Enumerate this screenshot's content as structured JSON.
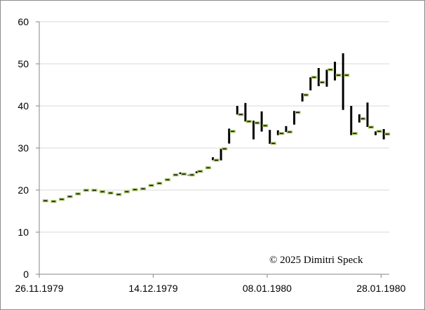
{
  "chart_data": {
    "type": "hlc",
    "title": "",
    "xlabel": "",
    "ylabel": "",
    "ylim": [
      0,
      60
    ],
    "yticks": [
      0,
      10,
      20,
      30,
      40,
      50,
      60
    ],
    "xtick_labels": [
      {
        "index": 0,
        "label": "26.11.1979"
      },
      {
        "index": 14,
        "label": "14.12.1979"
      },
      {
        "index": 28,
        "label": "08.01.1980"
      },
      {
        "index": 42,
        "label": "28.01.1980"
      }
    ],
    "grid": true,
    "annotation": "© 2025 Dimitri Speck",
    "colors": {
      "bar": "#000000",
      "close_marker": "#9bbb59",
      "grid": "#d9d9d9",
      "axis": "#868686"
    },
    "dates": [
      "26.11.1979",
      "27.11.1979",
      "28.11.1979",
      "29.11.1979",
      "30.11.1979",
      "03.12.1979",
      "04.12.1979",
      "05.12.1979",
      "06.12.1979",
      "07.12.1979",
      "10.12.1979",
      "11.12.1979",
      "12.12.1979",
      "13.12.1979",
      "14.12.1979",
      "17.12.1979",
      "18.12.1979",
      "19.12.1979",
      "20.12.1979",
      "21.12.1979",
      "26.12.1979",
      "27.12.1979",
      "28.12.1979",
      "31.12.1979",
      "02.01.1980",
      "03.01.1980",
      "04.01.1980",
      "07.01.1980",
      "08.01.1980",
      "09.01.1980",
      "10.01.1980",
      "11.01.1980",
      "14.01.1980",
      "15.01.1980",
      "16.01.1980",
      "17.01.1980",
      "18.01.1980",
      "21.01.1980",
      "22.01.1980",
      "23.01.1980",
      "24.01.1980",
      "25.01.1980",
      "28.01.1980"
    ],
    "high": [
      17.45,
      17.3,
      17.8,
      18.45,
      19.1,
      19.95,
      19.95,
      19.6,
      19.3,
      18.95,
      19.6,
      20.1,
      20.3,
      21.1,
      21.6,
      22.45,
      23.6,
      24.2,
      23.6,
      24.45,
      25.3,
      27.8,
      29.8,
      34.6,
      40.0,
      40.7,
      36.5,
      38.7,
      34.3,
      34.2,
      35.2,
      38.8,
      43.0,
      46.8,
      49.0,
      48.6,
      50.5,
      52.5,
      40.0,
      38.0,
      40.8,
      33.95,
      34.5
    ],
    "low": [
      17.45,
      17.3,
      17.8,
      18.45,
      19.1,
      19.95,
      19.95,
      19.6,
      19.3,
      18.95,
      19.6,
      20.1,
      20.3,
      21.1,
      21.6,
      22.45,
      23.6,
      23.8,
      23.45,
      24.0,
      25.3,
      27.1,
      27.05,
      31.05,
      37.95,
      36.3,
      32.05,
      33.9,
      31.0,
      33.05,
      33.8,
      35.55,
      41.05,
      43.7,
      44.7,
      44.55,
      46.05,
      39.05,
      33.05,
      36.05,
      35.0,
      33.05,
      32.05
    ],
    "close": [
      17.45,
      17.3,
      17.8,
      18.45,
      19.1,
      19.95,
      19.95,
      19.6,
      19.3,
      18.95,
      19.6,
      20.1,
      20.3,
      21.1,
      21.6,
      22.45,
      23.6,
      23.8,
      23.6,
      24.45,
      25.3,
      27.1,
      29.8,
      33.95,
      37.95,
      36.3,
      35.95,
      35.3,
      31.1,
      33.45,
      33.8,
      38.45,
      42.6,
      46.8,
      45.6,
      48.6,
      47.3,
      47.3,
      33.45,
      36.95,
      34.95,
      33.95,
      33.3
    ]
  }
}
